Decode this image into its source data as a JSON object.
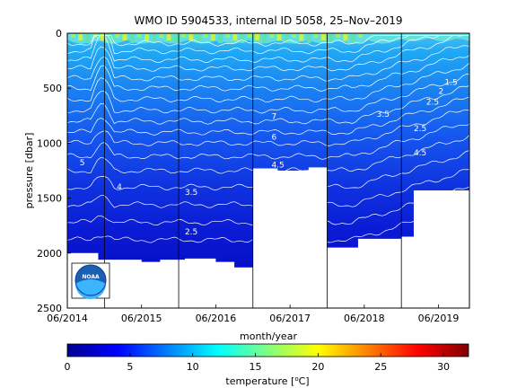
{
  "chart_data": {
    "type": "heatmap",
    "title": "WMO ID 5904533, internal ID 5058, 25–Nov–2019",
    "xlabel": "month/year",
    "ylabel": "pressure [dbar]",
    "x_ticks": [
      "06/2014",
      "06/2015",
      "06/2016",
      "06/2017",
      "06/2018",
      "06/2019"
    ],
    "x_range": [
      "2014-06",
      "2019-11"
    ],
    "y_ticks": [
      0,
      500,
      1000,
      1500,
      2000,
      2500
    ],
    "ylim": [
      2500,
      0
    ],
    "y_reversed": true,
    "colorbar": {
      "label": "temperature [°C]",
      "ticks": [
        0,
        5,
        10,
        15,
        20,
        25,
        30
      ],
      "range": [
        0,
        32
      ],
      "colormap": "jet"
    },
    "contour_levels_labeled": [
      1.5,
      2,
      2.5,
      3.5,
      4,
      4.5,
      5,
      6,
      7
    ],
    "max_depth_profile": [
      {
        "date": "2014-06",
        "pressure": 2000
      },
      {
        "date": "2014-10",
        "pressure": 2000
      },
      {
        "date": "2014-11",
        "pressure": 2060
      },
      {
        "date": "2015-06",
        "pressure": 2080
      },
      {
        "date": "2015-09",
        "pressure": 2060
      },
      {
        "date": "2016-01",
        "pressure": 2050
      },
      {
        "date": "2016-06",
        "pressure": 2080
      },
      {
        "date": "2016-09",
        "pressure": 2130
      },
      {
        "date": "2016-12",
        "pressure": 1230
      },
      {
        "date": "2017-04",
        "pressure": 1250
      },
      {
        "date": "2017-09",
        "pressure": 1220
      },
      {
        "date": "2017-12",
        "pressure": 1950
      },
      {
        "date": "2018-05",
        "pressure": 1870
      },
      {
        "date": "2018-12",
        "pressure": 1850
      },
      {
        "date": "2019-02",
        "pressure": 1430
      },
      {
        "date": "2019-11",
        "pressure": 1460
      }
    ],
    "contour_labels": [
      {
        "text": "7",
        "date": "2017-03",
        "pressure": 780
      },
      {
        "text": "6",
        "date": "2017-03",
        "pressure": 970
      },
      {
        "text": "5",
        "date": "2014-08",
        "pressure": 1200
      },
      {
        "text": "4.5",
        "date": "2017-03",
        "pressure": 1220
      },
      {
        "text": "4",
        "date": "2015-02",
        "pressure": 1420
      },
      {
        "text": "3.5",
        "date": "2016-01",
        "pressure": 1470
      },
      {
        "text": "3.5",
        "date": "2018-08",
        "pressure": 760
      },
      {
        "text": "2.5",
        "date": "2016-01",
        "pressure": 1830
      },
      {
        "text": "4.5",
        "date": "2019-02",
        "pressure": 1110
      },
      {
        "text": "2.5",
        "date": "2019-02",
        "pressure": 890
      },
      {
        "text": "2.5",
        "date": "2019-04",
        "pressure": 650
      },
      {
        "text": "2",
        "date": "2019-06",
        "pressure": 550
      },
      {
        "text": "1.5",
        "date": "2019-07",
        "pressure": 470
      }
    ],
    "logo": "noaa-logo"
  }
}
